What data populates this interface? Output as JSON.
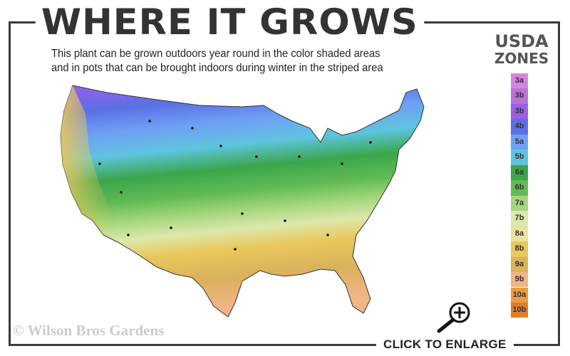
{
  "header": {
    "title": "WHERE IT GROWS",
    "subtitle_line1": "This plant can be grown outdoors year round in the color shaded areas",
    "subtitle_line2": "and in pots that can be brought indoors during winter in the striped area"
  },
  "legend": {
    "title_line1": "USDA",
    "title_line2": "ZONES",
    "zones": [
      {
        "label": "3a",
        "color": "#d783e2"
      },
      {
        "label": "3b",
        "color": "#bb72d8"
      },
      {
        "label": "3b",
        "color": "#9b5fea"
      },
      {
        "label": "4b",
        "color": "#5a70e4"
      },
      {
        "label": "5a",
        "color": "#6fa0f4"
      },
      {
        "label": "5b",
        "color": "#5ec4de"
      },
      {
        "label": "6a",
        "color": "#3aa64a"
      },
      {
        "label": "6b",
        "color": "#62bb55"
      },
      {
        "label": "7a",
        "color": "#a4d67c"
      },
      {
        "label": "7b",
        "color": "#dce8ab"
      },
      {
        "label": "8a",
        "color": "#eee19c"
      },
      {
        "label": "8b",
        "color": "#e9c85c"
      },
      {
        "label": "9a",
        "color": "#d9b25c"
      },
      {
        "label": "9b",
        "color": "#f0b485"
      },
      {
        "label": "10a",
        "color": "#ec9b3e"
      },
      {
        "label": "10b",
        "color": "#e07d2d"
      }
    ]
  },
  "footer": {
    "copyright": "© Wilson Bros Gardens",
    "enlarge_label": "CLICK TO ENLARGE"
  }
}
